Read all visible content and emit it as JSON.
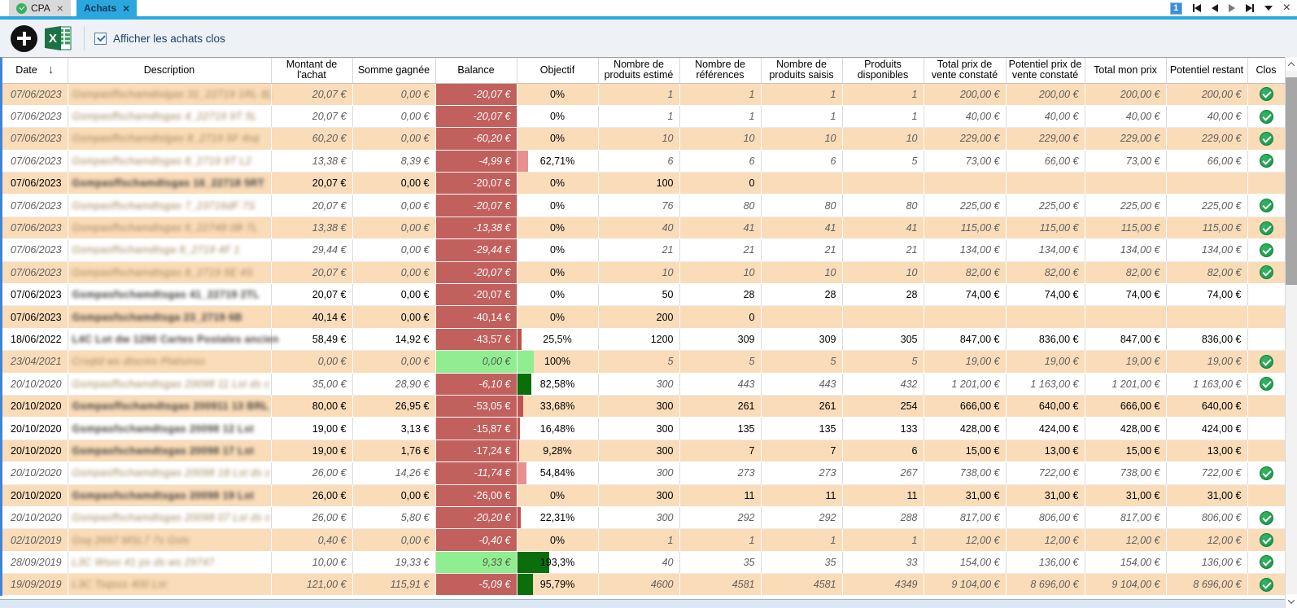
{
  "tabs": {
    "cpa": {
      "label": "CPA",
      "close": "×"
    },
    "achats": {
      "label": "Achats",
      "close": "×"
    }
  },
  "pager": {
    "page": "1"
  },
  "toolbar": {
    "checkbox_label": "Afficher les achats clos",
    "checkbox_checked": true
  },
  "columns": [
    {
      "key": "date",
      "label": "Date",
      "sort": "desc"
    },
    {
      "key": "desc",
      "label": "Description"
    },
    {
      "key": "montant",
      "label": "Montant de l'achat"
    },
    {
      "key": "somme",
      "label": "Somme gagnée"
    },
    {
      "key": "balance",
      "label": "Balance"
    },
    {
      "key": "objectif",
      "label": "Objectif"
    },
    {
      "key": "estime",
      "label": "Nombre de produits estimé"
    },
    {
      "key": "refs",
      "label": "Nombre de références"
    },
    {
      "key": "saisis",
      "label": "Nombre de produits saisis"
    },
    {
      "key": "dispo",
      "label": "Produits disponibles"
    },
    {
      "key": "totalprix",
      "label": "Total prix de vente constaté"
    },
    {
      "key": "potprix",
      "label": "Potentiel prix de vente constaté"
    },
    {
      "key": "totalmon",
      "label": "Total mon prix"
    },
    {
      "key": "potrest",
      "label": "Potentiel restant"
    },
    {
      "key": "clos",
      "label": "Clos"
    }
  ],
  "colors": {
    "stripe": "#fadcb9",
    "balance_red": "#c2605e",
    "balance_green": "#90ee90",
    "bar_red": "#bf5350",
    "bar_pink": "#e89090",
    "bar_green_dark": "#0a6e0a",
    "bar_green_light": "#90ee90",
    "check_green": "#21a052",
    "accent_blue": "#2aa7df"
  },
  "rows": [
    {
      "date": "07/06/2023",
      "desc": "Gsmpasffschamdtslgas 31_22719 1RL 8L",
      "montant": "20,07 €",
      "somme": "0,00 €",
      "balance": "-20,07 €",
      "bal": "red",
      "objectif": "0%",
      "pct": 0,
      "bar": "",
      "estime": "1",
      "refs": "1",
      "saisis": "1",
      "dispo": "1",
      "totalprix": "200,00 €",
      "potprix": "200,00 €",
      "totalmon": "200,00 €",
      "potrest": "200,00 €",
      "clos": true
    },
    {
      "date": "07/06/2023",
      "desc": "Gsmpasffschamdtsgas 4_22719 9T 5L",
      "montant": "20,07 €",
      "somme": "0,00 €",
      "balance": "-20,07 €",
      "bal": "red",
      "objectif": "0%",
      "pct": 0,
      "bar": "",
      "estime": "1",
      "refs": "1",
      "saisis": "1",
      "dispo": "1",
      "totalprix": "40,00 €",
      "potprix": "40,00 €",
      "totalmon": "40,00 €",
      "potrest": "40,00 €",
      "clos": true
    },
    {
      "date": "07/06/2023",
      "desc": "Gsmpasffschamdtslgas 8_2719 5F 4sq",
      "montant": "60,20 €",
      "somme": "0,00 €",
      "balance": "-60,20 €",
      "bal": "red",
      "objectif": "0%",
      "pct": 0,
      "bar": "",
      "estime": "10",
      "refs": "10",
      "saisis": "10",
      "dispo": "10",
      "totalprix": "229,00 €",
      "potprix": "229,00 €",
      "totalmon": "229,00 €",
      "potrest": "229,00 €",
      "clos": true
    },
    {
      "date": "07/06/2023",
      "desc": "Gsmpasffschamdtsgas 8_2719 9T L2",
      "montant": "13,38 €",
      "somme": "8,39 €",
      "balance": "-4,99 €",
      "bal": "red",
      "objectif": "62,71%",
      "pct": 62.71,
      "bar": "pink",
      "estime": "6",
      "refs": "6",
      "saisis": "6",
      "dispo": "5",
      "totalprix": "73,00 €",
      "potprix": "66,00 €",
      "totalmon": "73,00 €",
      "potrest": "66,00 €",
      "clos": true
    },
    {
      "date": "07/06/2023",
      "desc": "Gsmpasffschamdtsgas 16_22718 5RT",
      "montant": "20,07 €",
      "somme": "0,00 €",
      "balance": "-20,07 €",
      "bal": "red",
      "objectif": "0%",
      "pct": 0,
      "bar": "",
      "estime": "100",
      "refs": "0",
      "saisis": "",
      "dispo": "",
      "totalprix": "",
      "potprix": "",
      "totalmon": "",
      "potrest": "",
      "clos": false
    },
    {
      "date": "07/06/2023",
      "desc": "Gsmpasffschamdtsgas 7_23716dF 7S",
      "montant": "20,07 €",
      "somme": "0,00 €",
      "balance": "-20,07 €",
      "bal": "red",
      "objectif": "0%",
      "pct": 0,
      "bar": "",
      "estime": "76",
      "refs": "80",
      "saisis": "80",
      "dispo": "80",
      "totalprix": "225,00 €",
      "potprix": "225,00 €",
      "totalmon": "225,00 €",
      "potrest": "225,00 €",
      "clos": true
    },
    {
      "date": "07/06/2023",
      "desc": "Gsmpasffschamdtsgas 6_22748 0B 7L",
      "montant": "13,38 €",
      "somme": "0,00 €",
      "balance": "-13,38 €",
      "bal": "red",
      "objectif": "0%",
      "pct": 0,
      "bar": "",
      "estime": "40",
      "refs": "41",
      "saisis": "41",
      "dispo": "41",
      "totalprix": "115,00 €",
      "potprix": "115,00 €",
      "totalmon": "115,00 €",
      "potrest": "115,00 €",
      "clos": true
    },
    {
      "date": "07/06/2023",
      "desc": "Gsmpasffschamdtsga 8_2719 4F 1",
      "montant": "29,44 €",
      "somme": "0,00 €",
      "balance": "-29,44 €",
      "bal": "red",
      "objectif": "0%",
      "pct": 0,
      "bar": "",
      "estime": "21",
      "refs": "21",
      "saisis": "21",
      "dispo": "21",
      "totalprix": "134,00 €",
      "potprix": "134,00 €",
      "totalmon": "134,00 €",
      "potrest": "134,00 €",
      "clos": true
    },
    {
      "date": "07/06/2023",
      "desc": "Gsmpasffschamdtsgas 8_2719 5E 4S",
      "montant": "20,07 €",
      "somme": "0,00 €",
      "balance": "-20,07 €",
      "bal": "red",
      "objectif": "0%",
      "pct": 0,
      "bar": "",
      "estime": "10",
      "refs": "10",
      "saisis": "10",
      "dispo": "10",
      "totalprix": "82,00 €",
      "potprix": "82,00 €",
      "totalmon": "82,00 €",
      "potrest": "82,00 €",
      "clos": true
    },
    {
      "date": "07/06/2023",
      "desc": "Gsmpasfschamdtsgas 41_22719 2TL",
      "montant": "20,07 €",
      "somme": "0,00 €",
      "balance": "-20,07 €",
      "bal": "red",
      "objectif": "0%",
      "pct": 0,
      "bar": "",
      "estime": "50",
      "refs": "28",
      "saisis": "28",
      "dispo": "28",
      "totalprix": "74,00 €",
      "potprix": "74,00 €",
      "totalmon": "74,00 €",
      "potrest": "74,00 €",
      "clos": false
    },
    {
      "date": "07/06/2023",
      "desc": "Gsmpasfschamdtsga 23_2719 6B",
      "montant": "40,14 €",
      "somme": "0,00 €",
      "balance": "-40,14 €",
      "bal": "red",
      "objectif": "0%",
      "pct": 0,
      "bar": "",
      "estime": "200",
      "refs": "0",
      "saisis": "",
      "dispo": "",
      "totalprix": "",
      "potprix": "",
      "totalmon": "",
      "potrest": "",
      "clos": false
    },
    {
      "date": "18/06/2022",
      "desc": "L4C Lot dw 1290 Cartes Postales ancien",
      "montant": "58,49 €",
      "somme": "14,92 €",
      "balance": "-43,57 €",
      "bal": "red",
      "objectif": "25,5%",
      "pct": 25.5,
      "bar": "red",
      "estime": "1200",
      "refs": "309",
      "saisis": "309",
      "dispo": "305",
      "totalprix": "847,00 €",
      "potprix": "836,00 €",
      "totalmon": "847,00 €",
      "potrest": "836,00 €",
      "clos": false
    },
    {
      "date": "23/04/2021",
      "desc": "Crsqtd ws dtscms Ptatsmss",
      "montant": "0,00 €",
      "somme": "0,00 €",
      "balance": "0,00 €",
      "bal": "green",
      "objectif": "100%",
      "pct": 100,
      "bar": "green_light",
      "estime": "5",
      "refs": "5",
      "saisis": "5",
      "dispo": "5",
      "totalprix": "19,00 €",
      "potprix": "19,00 €",
      "totalmon": "19,00 €",
      "potrest": "19,00 €",
      "clos": true
    },
    {
      "date": "20/10/2020",
      "desc": "Gsmpasffschamdtsgas 20098 11 Lst ds c",
      "montant": "35,00 €",
      "somme": "28,90 €",
      "balance": "-6,10 €",
      "bal": "red",
      "objectif": "82,58%",
      "pct": 82.58,
      "bar": "green_dark",
      "estime": "300",
      "refs": "443",
      "saisis": "443",
      "dispo": "432",
      "totalprix": "1 201,00 €",
      "potprix": "1 163,00 €",
      "totalmon": "1 201,00 €",
      "potrest": "1 163,00 €",
      "clos": true
    },
    {
      "date": "20/10/2020",
      "desc": "Gsmpasffschamdtsgas 200911 13 BRL",
      "montant": "80,00 €",
      "somme": "26,95 €",
      "balance": "-53,05 €",
      "bal": "red",
      "objectif": "33,68%",
      "pct": 33.68,
      "bar": "red",
      "estime": "300",
      "refs": "261",
      "saisis": "261",
      "dispo": "254",
      "totalprix": "666,00 €",
      "potprix": "640,00 €",
      "totalmon": "666,00 €",
      "potrest": "640,00 €",
      "clos": false
    },
    {
      "date": "20/10/2020",
      "desc": "Gsmpasfschamdtsgas 20098 12 Lst",
      "montant": "19,00 €",
      "somme": "3,13 €",
      "balance": "-15,87 €",
      "bal": "red",
      "objectif": "16,48%",
      "pct": 16.48,
      "bar": "red",
      "estime": "300",
      "refs": "135",
      "saisis": "135",
      "dispo": "133",
      "totalprix": "428,00 €",
      "potprix": "424,00 €",
      "totalmon": "428,00 €",
      "potrest": "424,00 €",
      "clos": false
    },
    {
      "date": "20/10/2020",
      "desc": "Gsmpasfschamdtsgas 20098 17 Lst",
      "montant": "19,00 €",
      "somme": "1,76 €",
      "balance": "-17,24 €",
      "bal": "red",
      "objectif": "9,28%",
      "pct": 9.28,
      "bar": "red",
      "estime": "300",
      "refs": "7",
      "saisis": "7",
      "dispo": "6",
      "totalprix": "15,00 €",
      "potprix": "13,00 €",
      "totalmon": "15,00 €",
      "potrest": "13,00 €",
      "clos": false
    },
    {
      "date": "20/10/2020",
      "desc": "Gsmpasffschamdtsgas 20098 18 Lst ds c",
      "montant": "26,00 €",
      "somme": "14,26 €",
      "balance": "-11,74 €",
      "bal": "red",
      "objectif": "54,84%",
      "pct": 54.84,
      "bar": "pink",
      "estime": "300",
      "refs": "273",
      "saisis": "273",
      "dispo": "267",
      "totalprix": "738,00 €",
      "potprix": "722,00 €",
      "totalmon": "738,00 €",
      "potrest": "722,00 €",
      "clos": true
    },
    {
      "date": "20/10/2020",
      "desc": "Gsmpasfschamdtsgas 20098 19 Lst",
      "montant": "26,00 €",
      "somme": "0,00 €",
      "balance": "-26,00 €",
      "bal": "red",
      "objectif": "0%",
      "pct": 0,
      "bar": "",
      "estime": "300",
      "refs": "11",
      "saisis": "11",
      "dispo": "11",
      "totalprix": "31,00 €",
      "potprix": "31,00 €",
      "totalmon": "31,00 €",
      "potrest": "31,00 €",
      "clos": false
    },
    {
      "date": "20/10/2020",
      "desc": "Gsmpasffschamdtsgas 20098 07 Lst ds c",
      "montant": "26,00 €",
      "somme": "5,80 €",
      "balance": "-20,20 €",
      "bal": "red",
      "objectif": "22,31%",
      "pct": 22.31,
      "bar": "red",
      "estime": "300",
      "refs": "292",
      "saisis": "292",
      "dispo": "288",
      "totalprix": "817,00 €",
      "potprix": "806,00 €",
      "totalmon": "817,00 €",
      "potrest": "806,00 €",
      "clos": true
    },
    {
      "date": "02/10/2019",
      "desc": "Gsq 2697 MSL7 7s Gsts",
      "montant": "0,40 €",
      "somme": "0,00 €",
      "balance": "-0,40 €",
      "bal": "red",
      "objectif": "0%",
      "pct": 0,
      "bar": "",
      "estime": "1",
      "refs": "1",
      "saisis": "1",
      "dispo": "1",
      "totalprix": "12,00 €",
      "potprix": "12,00 €",
      "totalmon": "12,00 €",
      "potrest": "12,00 €",
      "clos": true
    },
    {
      "date": "28/09/2019",
      "desc": "L3C Wsxs 41 ps ds ws 29747",
      "montant": "10,00 €",
      "somme": "19,33 €",
      "balance": "9,33 €",
      "bal": "green",
      "objectif": "193,3%",
      "pct": 193.3,
      "bar": "green_dark",
      "estime": "40",
      "refs": "35",
      "saisis": "35",
      "dispo": "33",
      "totalprix": "154,00 €",
      "potprix": "136,00 €",
      "totalmon": "154,00 €",
      "potrest": "136,00 €",
      "clos": true
    },
    {
      "date": "19/09/2019",
      "desc": "L3C Tsqsss 400 Lst",
      "montant": "121,00 €",
      "somme": "115,91 €",
      "balance": "-5,09 €",
      "bal": "red",
      "objectif": "95,79%",
      "pct": 95.79,
      "bar": "green_dark",
      "estime": "4600",
      "refs": "4581",
      "saisis": "4581",
      "dispo": "4349",
      "totalprix": "9 104,00 €",
      "potprix": "8 696,00 €",
      "totalmon": "9 104,00 €",
      "potrest": "8 696,00 €",
      "clos": true
    }
  ]
}
